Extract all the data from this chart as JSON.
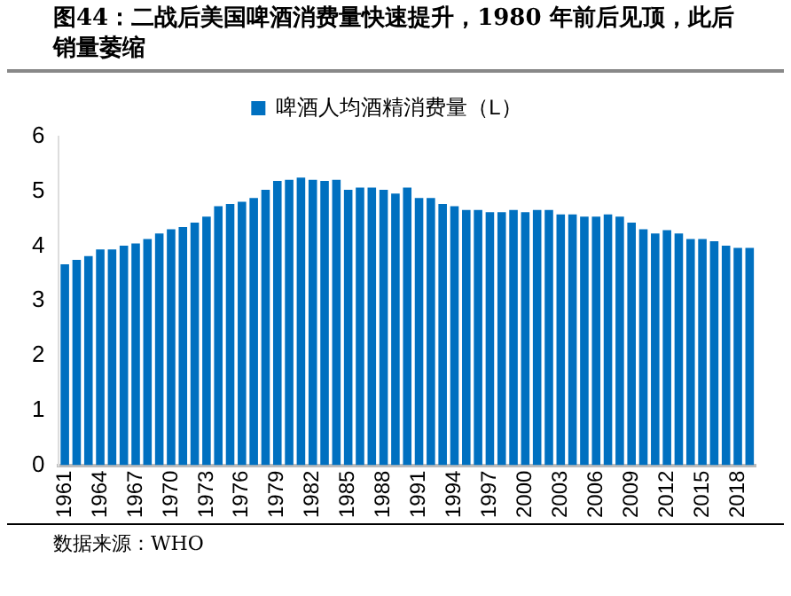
{
  "chart_data": {
    "type": "bar",
    "title": "图44：二战后美国啤酒消费量快速提升，1980 年前后见顶，此后销量萎缩",
    "categories": [
      "1961",
      null,
      null,
      "1964",
      null,
      null,
      "1967",
      null,
      null,
      "1970",
      null,
      null,
      "1973",
      null,
      null,
      "1976",
      null,
      null,
      "1979",
      null,
      null,
      "1982",
      null,
      null,
      "1985",
      null,
      null,
      "1988",
      null,
      null,
      "1991",
      null,
      null,
      "1994",
      null,
      null,
      "1997",
      null,
      null,
      "2000",
      null,
      null,
      "2003",
      null,
      null,
      "2006",
      null,
      null,
      "2009",
      null,
      null,
      "2012",
      null,
      null,
      "2015",
      null,
      null,
      "2018",
      null
    ],
    "series": [
      {
        "name": "啤酒人均酒精消费量（L）",
        "color": "#0070c0",
        "values": [
          3.67,
          3.75,
          3.82,
          3.94,
          3.94,
          4.01,
          4.05,
          4.13,
          4.23,
          4.31,
          4.35,
          4.43,
          4.54,
          4.73,
          4.77,
          4.81,
          4.88,
          5.03,
          5.19,
          5.21,
          5.25,
          5.21,
          5.19,
          5.21,
          5.03,
          5.07,
          5.07,
          5.03,
          4.96,
          5.07,
          4.88,
          4.88,
          4.77,
          4.73,
          4.66,
          4.66,
          4.62,
          4.62,
          4.66,
          4.62,
          4.66,
          4.66,
          4.58,
          4.58,
          4.54,
          4.54,
          4.58,
          4.54,
          4.43,
          4.31,
          4.23,
          4.29,
          4.23,
          4.13,
          4.13,
          4.09,
          4.01,
          3.97,
          3.97
        ]
      }
    ],
    "ylim": [
      0,
      6
    ],
    "yticks": [
      0,
      1,
      2,
      3,
      4,
      5,
      6
    ],
    "grid": false,
    "legend": "top",
    "annotations": [
      "数据来源：WHO"
    ]
  }
}
